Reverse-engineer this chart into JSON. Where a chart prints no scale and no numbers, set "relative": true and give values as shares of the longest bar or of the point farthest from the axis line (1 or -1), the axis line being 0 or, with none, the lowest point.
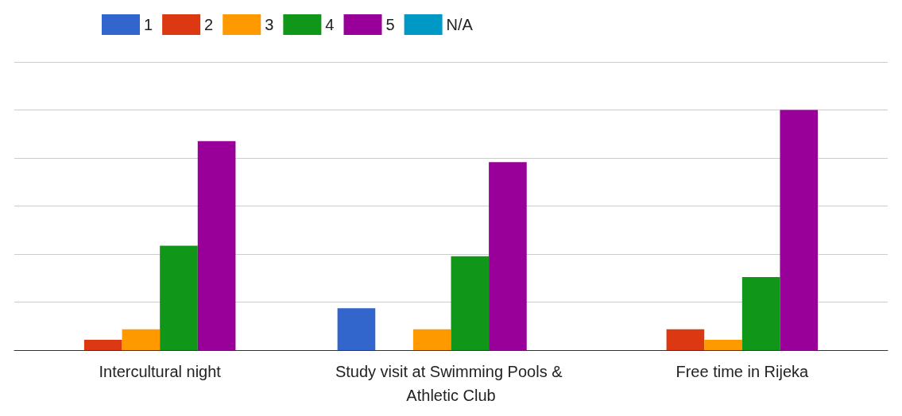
{
  "chart_data": {
    "type": "bar",
    "relative": true,
    "grid": true,
    "legend": "top left",
    "categories": [
      "Intercultural night",
      "Study visit at Swimming Pools & Athletic Club",
      "Free time in Rijeka"
    ],
    "series": [
      {
        "name": "1",
        "color": "#3366cc",
        "values": [
          null,
          0.174,
          null
        ]
      },
      {
        "name": "2",
        "color": "#dc3912",
        "values": [
          0.043,
          null,
          0.087
        ]
      },
      {
        "name": "3",
        "color": "#ff9900",
        "values": [
          0.087,
          0.087,
          0.043
        ]
      },
      {
        "name": "4",
        "color": "#109618",
        "values": [
          0.435,
          0.391,
          0.304
        ]
      },
      {
        "name": "5",
        "color": "#990099",
        "values": [
          0.87,
          0.783,
          1
        ]
      },
      {
        "name": "N/A",
        "color": "#0099c6",
        "values": [
          null,
          null,
          null
        ]
      }
    ]
  }
}
